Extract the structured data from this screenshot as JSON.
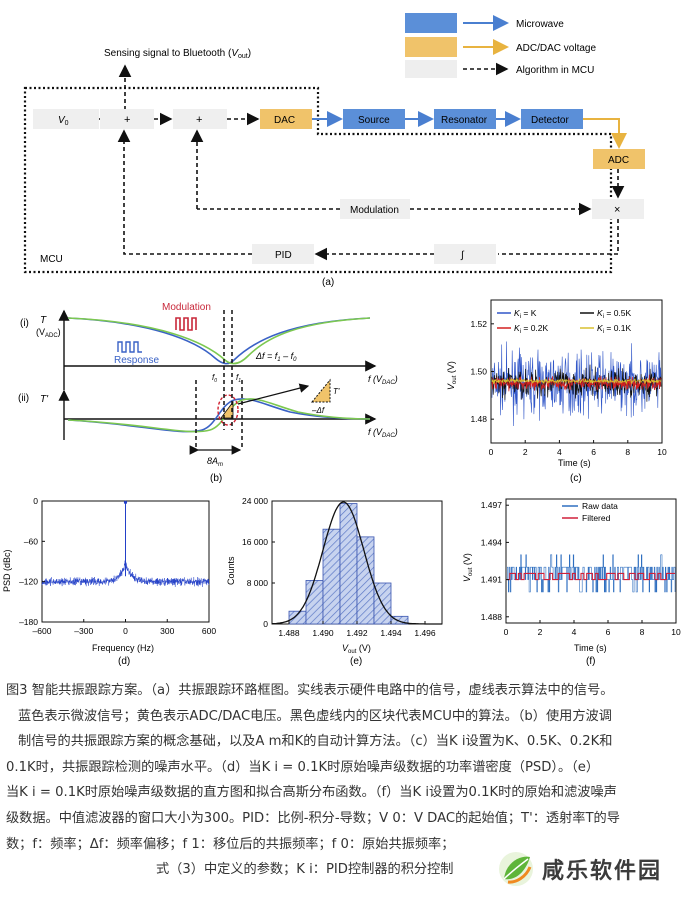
{
  "panel_a": {
    "legend": {
      "microwave": "Microwave",
      "adc_dac": "ADC/DAC voltage",
      "algorithm": "Algorithm in MCU"
    },
    "sensing_label": "Sensing signal to Bluetooth (",
    "sensing_var": "V",
    "sensing_sub": "out",
    "sensing_close": ")",
    "v0_main": "V",
    "v0_sub": "0",
    "plus": "+",
    "dac": "DAC",
    "source": "Source",
    "resonator": "Resonator",
    "detector": "Detector",
    "adc": "ADC",
    "modulation": "Modulation",
    "times": "×",
    "pid": "PID",
    "integral": "∫",
    "mcu": "MCU",
    "tag": "(a)",
    "colors": {
      "microwave": "#4a7fd0",
      "adc": "#e8b340",
      "box_blue": "#5b8fd8",
      "box_orange": "#f0c36a",
      "box_grey": "#f0f0f0"
    }
  },
  "panel_b": {
    "i_label": "(i)",
    "ii_label": "(ii)",
    "T": "T",
    "T_sub": "(V",
    "T_sub2": "ADC",
    "T_close": ")",
    "Tprime": "T'",
    "modulation": "Modulation",
    "response": "Response",
    "delta_f": "Δf = f",
    "delta_f_1": "1",
    "delta_f_mid": " – f",
    "delta_f_0": "0",
    "f_axis": "f (V",
    "f_axis_sub": "DAC",
    "f_axis_close": ")",
    "f0": "f",
    "f0_sub": "0",
    "f1": "f",
    "f1_sub": "1",
    "tri_T": "T'",
    "tri_f": "–Δf",
    "width": "8A",
    "width_sub": "m",
    "tag": "(b)"
  },
  "panel_c": {
    "chart_data": {
      "type": "line",
      "xlabel": "Time (s)",
      "ylabel": "V",
      "ylabel_sub": "out",
      "ylabel_unit": " (V)",
      "xlim": [
        0,
        10
      ],
      "ylim": [
        1.47,
        1.53
      ],
      "xticks": [
        "0",
        "2",
        "4",
        "6",
        "8",
        "10"
      ],
      "yticks": [
        "1.48",
        "1.50",
        "1.52"
      ],
      "series": [
        {
          "name": "Ki = K",
          "color": "#3056c8",
          "mean": 1.495,
          "spread": 0.013
        },
        {
          "name": "Ki = 0.5K",
          "color": "#111111",
          "mean": 1.495,
          "spread": 0.006
        },
        {
          "name": "Ki = 0.2K",
          "color": "#d22020",
          "mean": 1.495,
          "spread": 0.003
        },
        {
          "name": "Ki = 0.1K",
          "color": "#d8c030",
          "mean": 1.496,
          "spread": 0.001
        }
      ]
    },
    "legend": [
      {
        "sym": "K",
        "sub": "i",
        "rest": " = K",
        "color": "#3056c8"
      },
      {
        "sym": "K",
        "sub": "i",
        "rest": " = 0.5K",
        "color": "#111111"
      },
      {
        "sym": "K",
        "sub": "i",
        "rest": " = 0.2K",
        "color": "#d22020"
      },
      {
        "sym": "K",
        "sub": "i",
        "rest": " = 0.1K",
        "color": "#d8c030"
      }
    ],
    "tag": "(c)"
  },
  "panel_d": {
    "chart_data": {
      "type": "line",
      "xlabel": "Frequency (Hz)",
      "ylabel": "PSD (dBc)",
      "xlim": [
        -600,
        600
      ],
      "ylim": [
        -180,
        0
      ],
      "xticks": [
        "–600",
        "–300",
        "0",
        "300",
        "600"
      ],
      "yticks": [
        "0",
        "–60",
        "–120",
        "–180"
      ],
      "series": [
        {
          "color": "#2340c8",
          "floor": -120,
          "peak_x": 0,
          "peak_y": -2
        }
      ]
    },
    "tag": "(d)"
  },
  "panel_e": {
    "chart_data": {
      "type": "bar",
      "xlabel": "V",
      "xlabel_sub": "out",
      "xlabel_unit": " (V)",
      "ylabel": "Counts",
      "xlim": [
        1.487,
        1.497
      ],
      "ylim": [
        0,
        24000
      ],
      "xticks": [
        "1.488",
        "1.490",
        "1.492",
        "1.494",
        "1.496"
      ],
      "yticks": [
        "24 000",
        "16 000",
        "8 000",
        "0"
      ],
      "bins": [
        1.4885,
        1.4895,
        1.4905,
        1.4915,
        1.4925,
        1.4935,
        1.4945
      ],
      "values": [
        2500,
        8500,
        18500,
        23500,
        17000,
        8000,
        1500
      ],
      "fit": {
        "mean": 1.4912,
        "sigma": 0.0012,
        "peak": 23800
      }
    },
    "tag": "(e)"
  },
  "panel_f": {
    "chart_data": {
      "type": "line",
      "xlabel": "Time (s)",
      "ylabel": "V",
      "ylabel_sub": "out",
      "ylabel_unit": " (V)",
      "xlim": [
        0,
        10
      ],
      "ylim": [
        1.4875,
        1.4975
      ],
      "xticks": [
        "0",
        "2",
        "4",
        "6",
        "8",
        "10"
      ],
      "yticks": [
        "1.497",
        "1.494",
        "1.491",
        "1.488"
      ],
      "series": [
        {
          "name": "Raw data",
          "color": "#2f6fc0"
        },
        {
          "name": "Filtered",
          "color": "#d0203a"
        }
      ]
    },
    "tag": "(f)"
  },
  "caption": {
    "lines": [
      "图3 智能共振跟踪方案。（a）共振跟踪环路框图。实线表示硬件电路中的信号，虚线表示算法中的信号。",
      "蓝色表示微波信号；黄色表示ADC/DAC电压。黑色虚线内的区块代表MCU中的算法。（b）使用方波调",
      "制信号的共振跟踪方案的概念基础，以及A m和K的自动计算方法。（c）当K i设置为K、0.5K、0.2K和",
      "0.1K时，共振跟踪检测的噪声水平。（d）当K i = 0.1K时原始噪声级数据的功率谱密度（PSD）。（e）",
      "当K i = 0.1K时原始噪声级数据的直方图和拟合高斯分布函数。（f）当K i设置为0.1K时的原始和滤波噪声",
      "级数据。中值滤波器的窗口大小为300。PID：比例-积分-导数；V 0：V DAC的起始值；T'：透射率T的导",
      "数；f：频率；Δf：频率偏移；f 1：移位后的共振频率；f 0：原始共振频率；",
      "式（3）中定义的参数；K i：PID控制器的积分控制"
    ]
  },
  "watermark": {
    "text": "咸乐软件园"
  }
}
